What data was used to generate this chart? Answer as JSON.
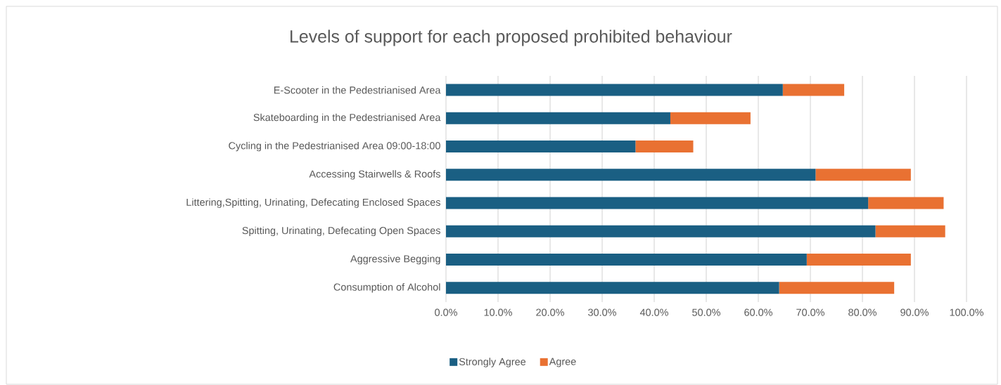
{
  "chart_data": {
    "type": "bar",
    "orientation": "horizontal",
    "stacked": true,
    "title": "Levels of support for each proposed prohibited behaviour",
    "categories": [
      "E-Scooter in the Pedestrianised Area",
      "Skateboarding in the Pedestrianised Area",
      "Cycling in the Pedestrianised Area 09:00-18:00",
      "Accessing Stairwells & Roofs",
      "Littering,Spitting, Urinating, Defecating Enclosed Spaces",
      "Spitting, Urinating, Defecating Open Spaces",
      "Aggressive Begging",
      "Consumption of Alcohol"
    ],
    "series": [
      {
        "name": "Strongly Agree",
        "color": "#1a5f83",
        "values": [
          64.7,
          43.1,
          36.4,
          71.0,
          81.1,
          82.5,
          69.3,
          64.0
        ]
      },
      {
        "name": "Agree",
        "color": "#e97132",
        "values": [
          11.8,
          15.4,
          11.1,
          18.3,
          14.5,
          13.4,
          20.0,
          22.1
        ]
      }
    ],
    "xlim": [
      0,
      100
    ],
    "xticks": [
      {
        "value": 0,
        "label": "0.0%"
      },
      {
        "value": 10,
        "label": "10.0%"
      },
      {
        "value": 20,
        "label": "20.0%"
      },
      {
        "value": 30,
        "label": "30.0%"
      },
      {
        "value": 40,
        "label": "40.0%"
      },
      {
        "value": 50,
        "label": "50.0%"
      },
      {
        "value": 60,
        "label": "60.0%"
      },
      {
        "value": 70,
        "label": "70.0%"
      },
      {
        "value": 80,
        "label": "80.0%"
      },
      {
        "value": 90,
        "label": "90.0%"
      },
      {
        "value": 100,
        "label": "100.0%"
      }
    ],
    "grid": "x",
    "legend": "bottom"
  }
}
